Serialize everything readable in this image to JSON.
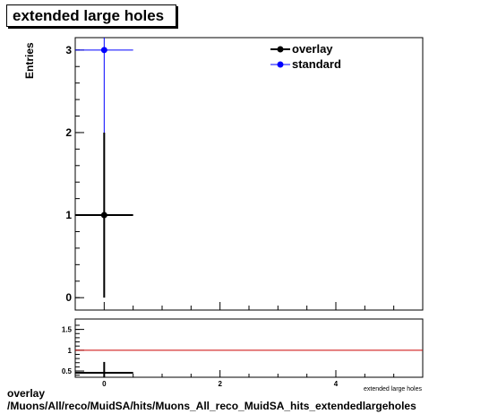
{
  "page_title": "extended large holes",
  "footer": {
    "line1": "overlay",
    "line2": "/Muons/All/reco/MuidSA/hits/Muons_All_reco_MuidSA_hits_extendedlargeholes"
  },
  "chart_data": [
    {
      "type": "scatter",
      "title": "extended large holes",
      "ylabel": "Entries",
      "xlim": [
        -0.5,
        5.5
      ],
      "ylim": [
        -0.15,
        3.15
      ],
      "y_ticks": [
        "0",
        "1",
        "2",
        "3"
      ],
      "legend_position": "top-right",
      "series": [
        {
          "name": "overlay",
          "color": "#000000",
          "points": [
            {
              "x": 0,
              "y": 1,
              "x_err": 0.5,
              "y_err": 1
            }
          ]
        },
        {
          "name": "standard",
          "color": "#0000ff",
          "points": [
            {
              "x": 0,
              "y": 3,
              "x_err": 0.5,
              "y_err": 1.732
            }
          ]
        }
      ]
    },
    {
      "type": "scatter",
      "xlabel": "extended large holes",
      "xlim": [
        -0.5,
        5.5
      ],
      "ylim": [
        0.35,
        1.75
      ],
      "x_ticks": [
        "0",
        "2",
        "4"
      ],
      "y_ticks": [
        "0.5",
        "1",
        "1.5"
      ],
      "reference_line": {
        "y": 1,
        "color": "#cc0000"
      },
      "series": [
        {
          "color": "#000000",
          "points": [
            {
              "x": 0,
              "y": 0.333,
              "x_err": 0.5,
              "y_err": 0.385
            }
          ]
        }
      ]
    }
  ]
}
